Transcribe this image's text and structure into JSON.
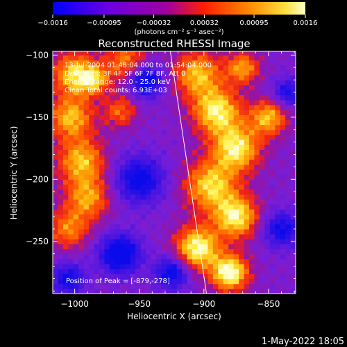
{
  "colorbar": {
    "tick_values": [
      "-0.0016",
      "-0.00095",
      "-0.00032",
      "0.00032",
      "0.00095",
      "0.0016"
    ],
    "range": [
      -0.0016,
      0.0016
    ],
    "unit_label": "(photons cm⁻² s⁻¹ asec⁻²)"
  },
  "chart_data": {
    "type": "heatmap",
    "title": "Reconstructed RHESSI Image",
    "xlabel": "Heliocentric X (arcsec)",
    "ylabel": "Heliocentric Y (arcsec)",
    "xlim": [
      -1017,
      -829
    ],
    "ylim": [
      -292,
      -97
    ],
    "x_ticks": [
      -1000,
      -950,
      -900,
      -850
    ],
    "y_ticks": [
      -100,
      -150,
      -200,
      -250
    ],
    "x_tick_labels": [
      "−1000",
      "−950",
      "−900",
      "−850"
    ],
    "y_tick_labels": [
      "−100",
      "−150",
      "−200",
      "−250"
    ],
    "grid": false,
    "colormap": "rhessi (blue-purple-red-orange-yellow-white)",
    "colors": {
      "low": "#0000ff",
      "mid": "#9b00ff",
      "high": "#ff2a00",
      "peak": "#ffff80"
    },
    "annotations": [
      "13-Jul-2004 01:48:04.000 to 01:54:04.000",
      "Detectors: 3F 4F 5F 6F 7F 8F, Att 0",
      "Energy Range: 12.0 - 25.0 keV",
      "Clean     Total counts: 6.93E+03"
    ],
    "peak_label": "Position of Peak = [-879,-278]",
    "peak_position": [
      -879,
      -278
    ],
    "limb_line": [
      [
        -926,
        -97
      ],
      [
        -898,
        -292
      ]
    ]
  },
  "footer": {
    "date": "1-May-2022 18:05"
  }
}
